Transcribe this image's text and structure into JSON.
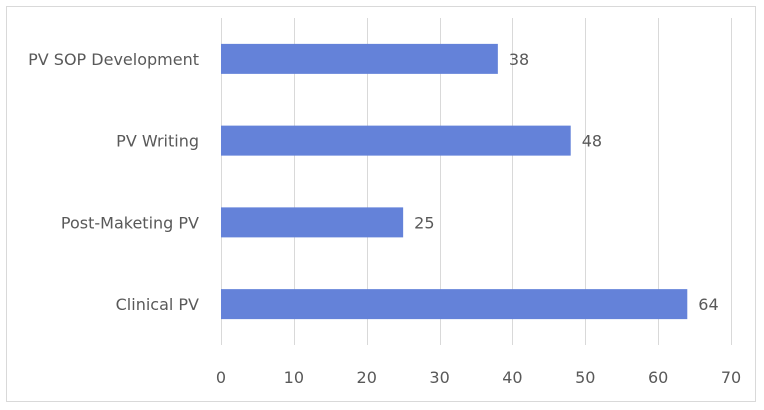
{
  "chart_data": {
    "type": "bar",
    "orientation": "horizontal",
    "categories": [
      "PV SOP Development",
      "PV Writing",
      "Post-Maketing PV",
      "Clinical PV"
    ],
    "values": [
      38,
      48,
      25,
      64
    ],
    "xlim": [
      0,
      70
    ],
    "xticks": [
      0,
      10,
      20,
      30,
      40,
      50,
      60,
      70
    ],
    "grid": "vertical",
    "legend": "none",
    "bar_color": "#6482d9",
    "data_labels": true
  }
}
